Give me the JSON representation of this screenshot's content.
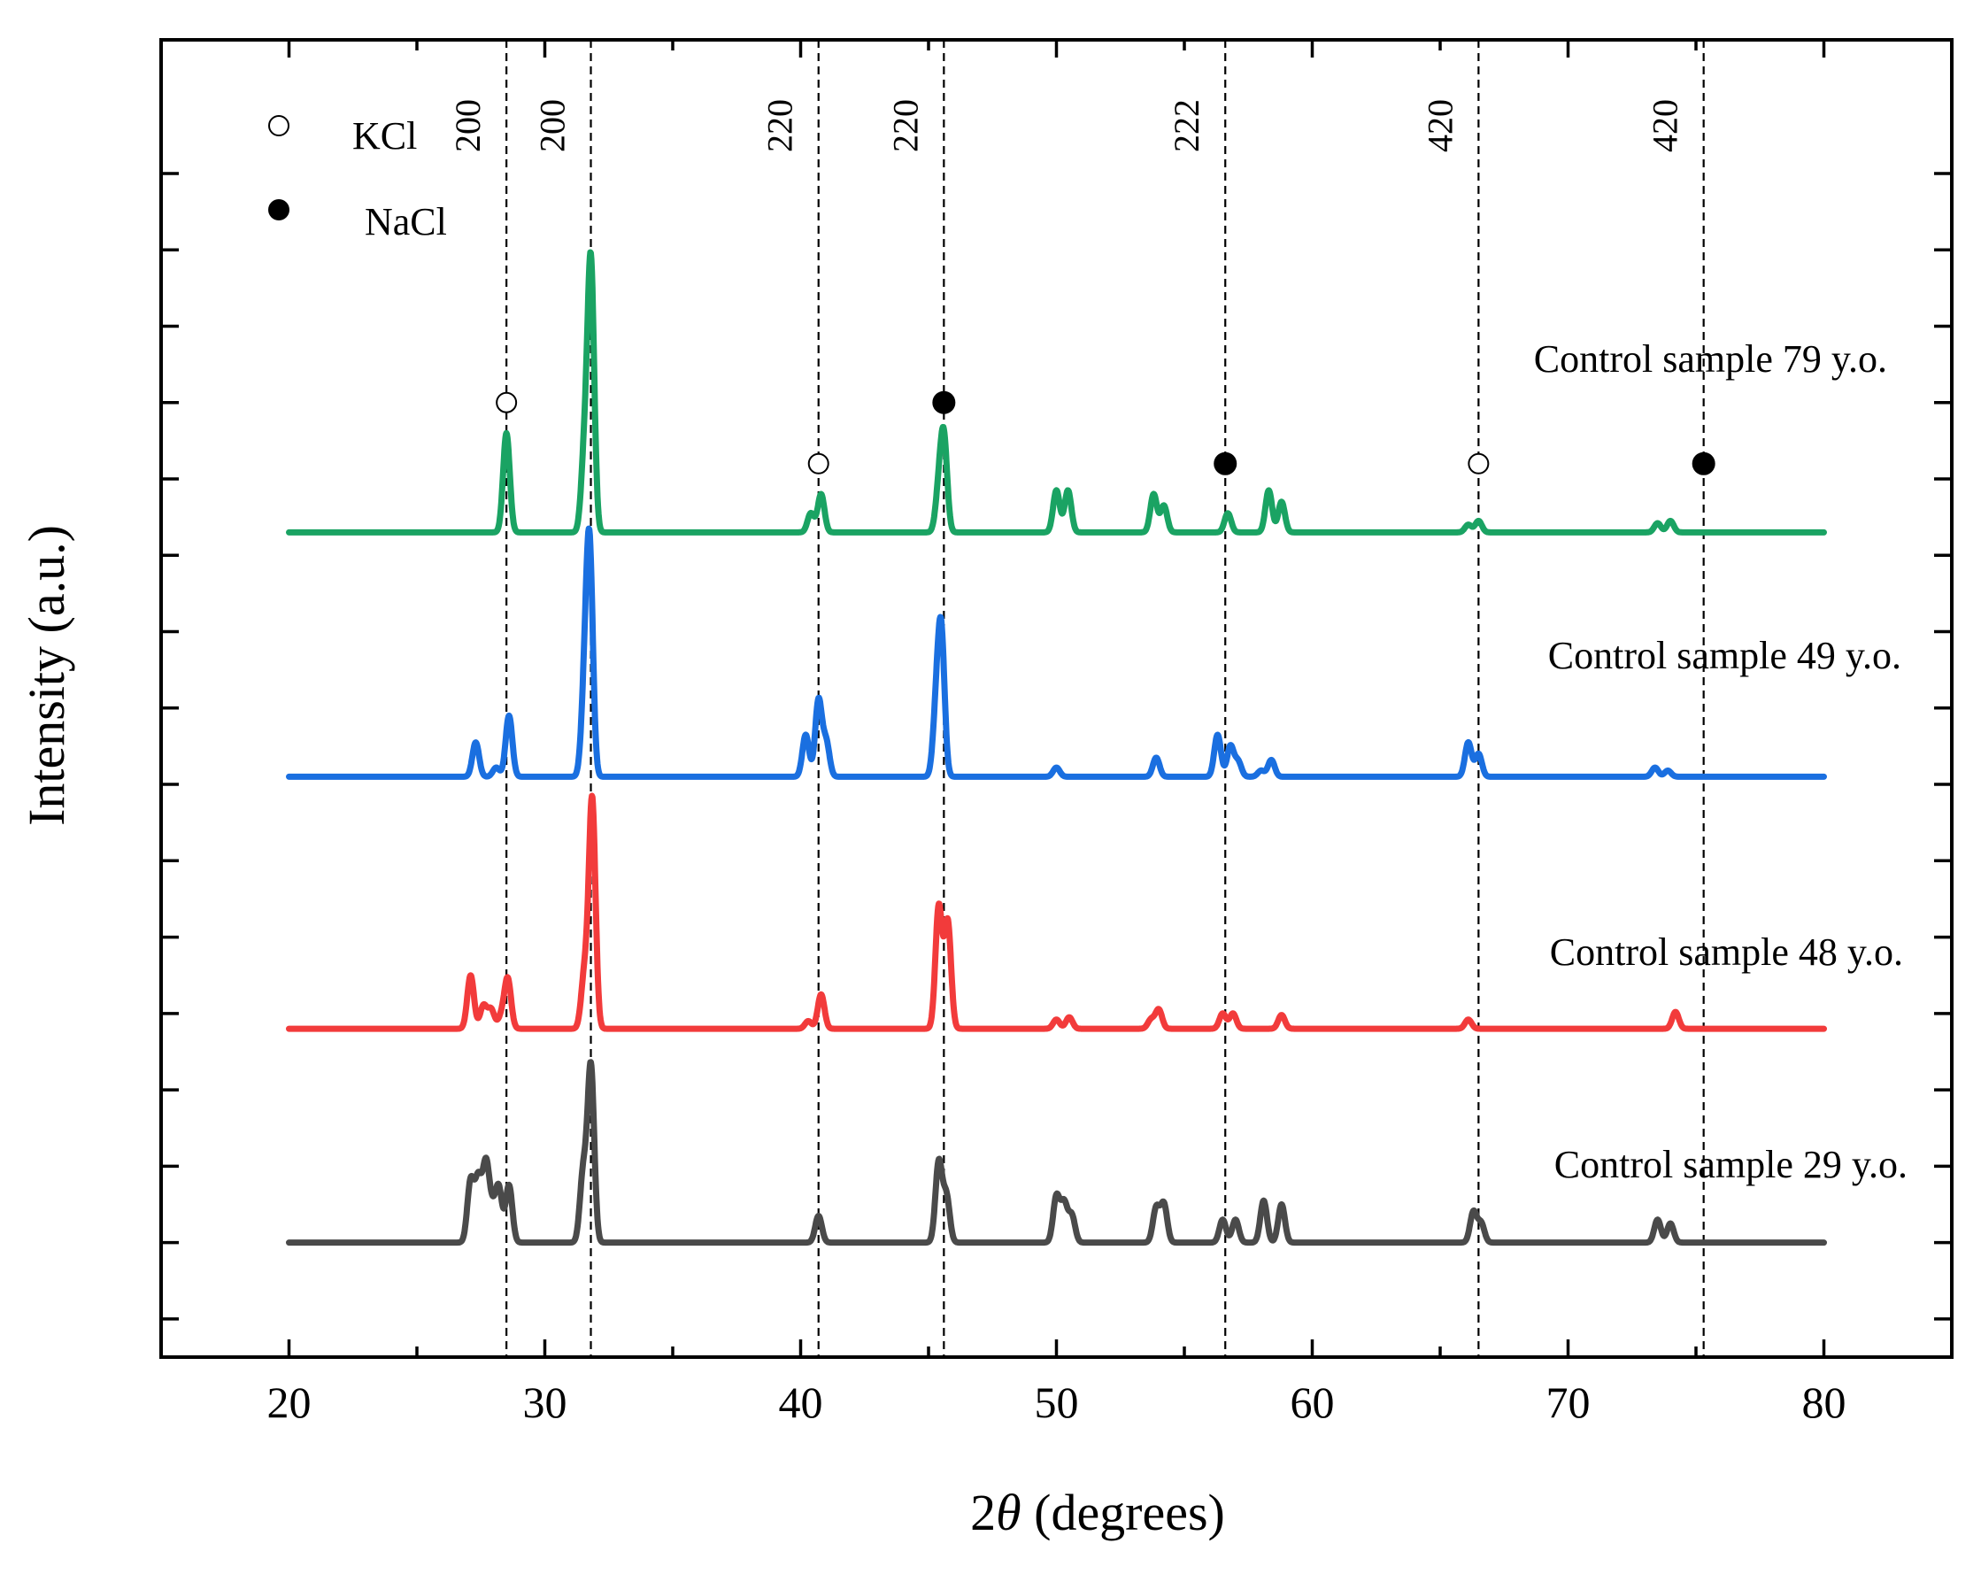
{
  "chart_data": {
    "type": "line",
    "title": "",
    "xlabel_prefix": "2",
    "xlabel_symbol": "θ",
    "xlabel_suffix": " (degrees)",
    "ylabel": "Intensity (a.u.)",
    "xlim": [
      15,
      85
    ],
    "ylim": [
      -1.5,
      15.75
    ],
    "x_ticks": [
      20,
      30,
      40,
      50,
      60,
      70,
      80
    ],
    "x_tick_labels": [
      "20",
      "30",
      "40",
      "50",
      "60",
      "70",
      "80"
    ],
    "legend": {
      "placement": "top-left",
      "entries": [
        {
          "label": "KCl",
          "marker": "open-circle"
        },
        {
          "label": "NaCl",
          "marker": "filled-circle"
        }
      ]
    },
    "reference_lines": [
      {
        "x": 28.5,
        "label": "200",
        "phase": "KCl"
      },
      {
        "x": 31.8,
        "label": "200",
        "phase": "NaCl"
      },
      {
        "x": 40.7,
        "label": "220",
        "phase": "KCl"
      },
      {
        "x": 45.6,
        "label": "220",
        "phase": "NaCl"
      },
      {
        "x": 56.6,
        "label": "222",
        "phase": "NaCl"
      },
      {
        "x": 66.5,
        "label": "420",
        "phase": "KCl"
      },
      {
        "x": 75.3,
        "label": "420",
        "phase": "NaCl"
      }
    ],
    "series": [
      {
        "name": "Control sample 79 y.o.",
        "color": "#1aa363",
        "baseline": 9.3,
        "x_range": [
          20,
          80
        ],
        "peaks": [
          {
            "x": 28.5,
            "h": 1.3
          },
          {
            "x": 31.55,
            "h": 1.0
          },
          {
            "x": 31.8,
            "h": 3.5
          },
          {
            "x": 40.4,
            "h": 0.25
          },
          {
            "x": 40.8,
            "h": 0.5
          },
          {
            "x": 45.6,
            "h": 1.2
          },
          {
            "x": 45.4,
            "h": 0.5
          },
          {
            "x": 50.0,
            "h": 0.55
          },
          {
            "x": 50.45,
            "h": 0.55
          },
          {
            "x": 53.8,
            "h": 0.5
          },
          {
            "x": 54.2,
            "h": 0.35
          },
          {
            "x": 56.7,
            "h": 0.25
          },
          {
            "x": 58.3,
            "h": 0.55
          },
          {
            "x": 58.8,
            "h": 0.4
          },
          {
            "x": 66.1,
            "h": 0.1
          },
          {
            "x": 66.5,
            "h": 0.15
          },
          {
            "x": 73.5,
            "h": 0.12
          },
          {
            "x": 74.0,
            "h": 0.15
          }
        ],
        "markers": [
          {
            "x": 28.5,
            "y": 11.0,
            "phase": "KCl"
          },
          {
            "x": 45.6,
            "y": 11.0,
            "phase": "NaCl"
          },
          {
            "x": 40.7,
            "y": 10.2,
            "phase": "KCl"
          },
          {
            "x": 56.6,
            "y": 10.2,
            "phase": "NaCl"
          },
          {
            "x": 66.5,
            "y": 10.2,
            "phase": "KCl"
          },
          {
            "x": 75.3,
            "y": 10.2,
            "phase": "NaCl"
          }
        ]
      },
      {
        "name": "Control sample 49 y.o.",
        "color": "#1a6fe0",
        "baseline": 6.1,
        "x_range": [
          20,
          80
        ],
        "peaks": [
          {
            "x": 27.3,
            "h": 0.45
          },
          {
            "x": 28.1,
            "h": 0.12
          },
          {
            "x": 28.6,
            "h": 0.8
          },
          {
            "x": 31.55,
            "h": 1.0
          },
          {
            "x": 31.75,
            "h": 2.9
          },
          {
            "x": 40.2,
            "h": 0.55
          },
          {
            "x": 40.7,
            "h": 1.0
          },
          {
            "x": 41.0,
            "h": 0.45
          },
          {
            "x": 45.5,
            "h": 1.8
          },
          {
            "x": 45.3,
            "h": 0.8
          },
          {
            "x": 50.0,
            "h": 0.12
          },
          {
            "x": 53.9,
            "h": 0.25
          },
          {
            "x": 56.3,
            "h": 0.55
          },
          {
            "x": 56.8,
            "h": 0.4
          },
          {
            "x": 57.1,
            "h": 0.2
          },
          {
            "x": 58.0,
            "h": 0.08
          },
          {
            "x": 58.4,
            "h": 0.22
          },
          {
            "x": 66.1,
            "h": 0.45
          },
          {
            "x": 66.5,
            "h": 0.3
          },
          {
            "x": 73.4,
            "h": 0.12
          },
          {
            "x": 73.9,
            "h": 0.08
          }
        ],
        "markers": []
      },
      {
        "name": "Control sample 48 y.o.",
        "color": "#f23b3b",
        "baseline": 2.8,
        "x_range": [
          20,
          80
        ],
        "peaks": [
          {
            "x": 27.1,
            "h": 0.7
          },
          {
            "x": 27.6,
            "h": 0.3
          },
          {
            "x": 27.9,
            "h": 0.25
          },
          {
            "x": 28.3,
            "h": 0.15
          },
          {
            "x": 28.55,
            "h": 0.65
          },
          {
            "x": 31.55,
            "h": 0.7
          },
          {
            "x": 31.85,
            "h": 3.0
          },
          {
            "x": 40.3,
            "h": 0.1
          },
          {
            "x": 40.8,
            "h": 0.45
          },
          {
            "x": 45.4,
            "h": 1.6
          },
          {
            "x": 45.75,
            "h": 1.4
          },
          {
            "x": 50.0,
            "h": 0.12
          },
          {
            "x": 50.5,
            "h": 0.15
          },
          {
            "x": 53.7,
            "h": 0.12
          },
          {
            "x": 54.0,
            "h": 0.25
          },
          {
            "x": 56.5,
            "h": 0.2
          },
          {
            "x": 56.9,
            "h": 0.2
          },
          {
            "x": 58.8,
            "h": 0.18
          },
          {
            "x": 66.1,
            "h": 0.12
          },
          {
            "x": 74.2,
            "h": 0.22
          }
        ],
        "markers": []
      },
      {
        "name": "Control sample 29 y.o.",
        "color": "#4a4a4a",
        "baseline": 0.0,
        "x_range": [
          20,
          80
        ],
        "peaks": [
          {
            "x": 27.1,
            "h": 0.8
          },
          {
            "x": 27.4,
            "h": 0.8
          },
          {
            "x": 27.7,
            "h": 1.0
          },
          {
            "x": 27.95,
            "h": 0.35
          },
          {
            "x": 28.2,
            "h": 0.7
          },
          {
            "x": 28.6,
            "h": 0.75
          },
          {
            "x": 31.5,
            "h": 0.9
          },
          {
            "x": 31.8,
            "h": 2.3
          },
          {
            "x": 40.7,
            "h": 0.35
          },
          {
            "x": 45.4,
            "h": 1.05
          },
          {
            "x": 45.7,
            "h": 0.6
          },
          {
            "x": 50.0,
            "h": 0.6
          },
          {
            "x": 50.3,
            "h": 0.5
          },
          {
            "x": 50.6,
            "h": 0.35
          },
          {
            "x": 53.9,
            "h": 0.45
          },
          {
            "x": 54.2,
            "h": 0.5
          },
          {
            "x": 56.5,
            "h": 0.3
          },
          {
            "x": 57.0,
            "h": 0.3
          },
          {
            "x": 58.1,
            "h": 0.55
          },
          {
            "x": 58.8,
            "h": 0.5
          },
          {
            "x": 66.3,
            "h": 0.4
          },
          {
            "x": 66.6,
            "h": 0.25
          },
          {
            "x": 73.5,
            "h": 0.3
          },
          {
            "x": 74.0,
            "h": 0.25
          }
        ],
        "markers": []
      }
    ]
  }
}
